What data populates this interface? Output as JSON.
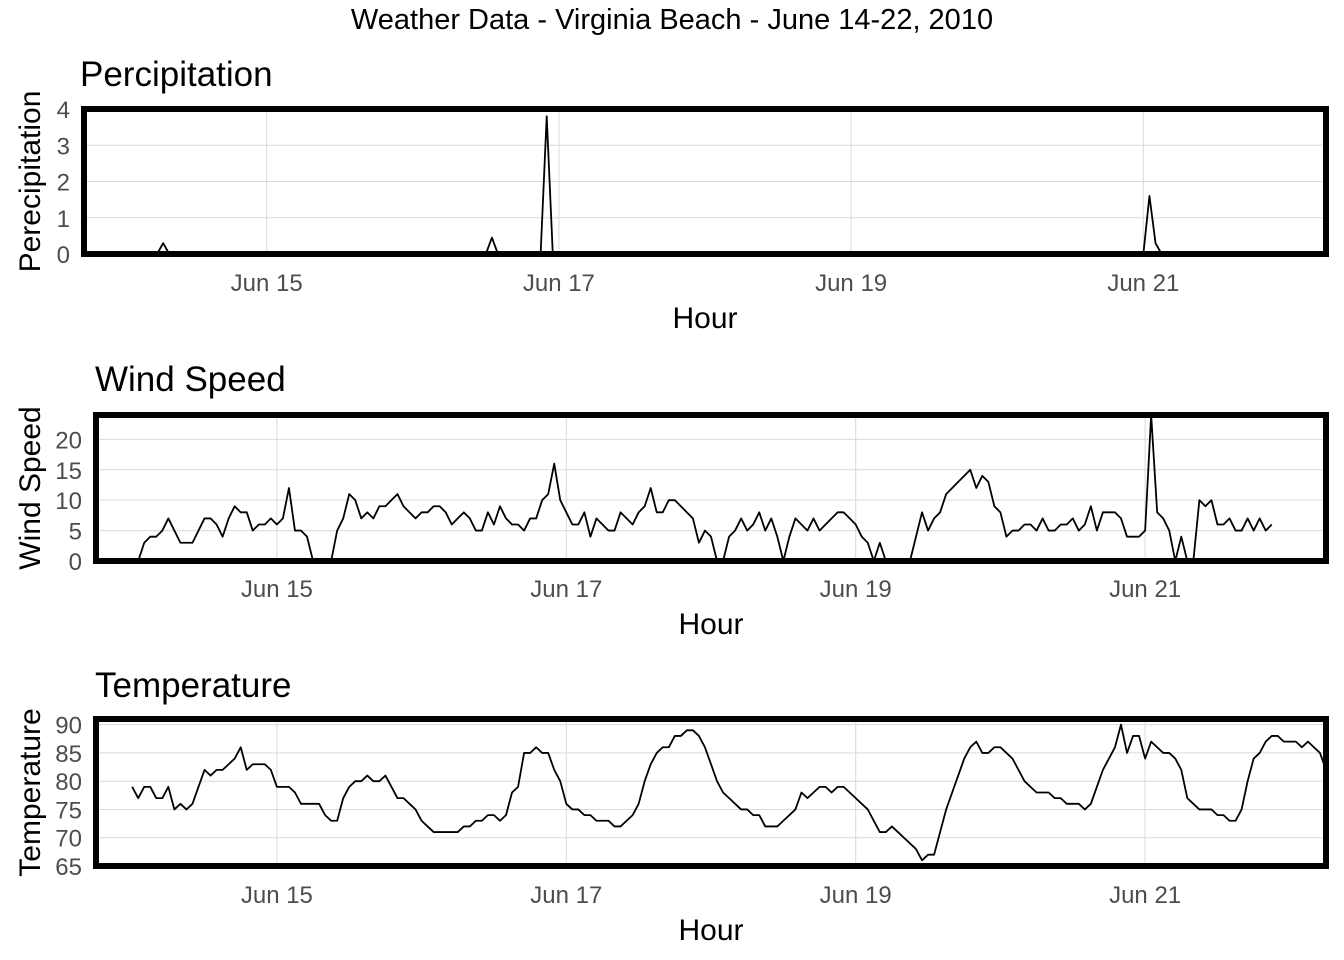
{
  "title": "Weather Data - Virginia Beach - June 14-22, 2010",
  "chart_data": [
    {
      "type": "line",
      "title": "Percipitation",
      "xlabel": "Hour",
      "ylabel": "Perecipitation",
      "x_start": "2010-06-14 00:00",
      "x_end": "2010-06-22 00:00",
      "xlim": [
        "2010-06-13 18:00",
        "2010-06-22 06:00"
      ],
      "ylim": [
        0,
        4
      ],
      "x_ticks": [
        "2010-06-15",
        "2010-06-17",
        "2010-06-19",
        "2010-06-21"
      ],
      "x_tick_labels": [
        "Jun 15",
        "Jun 17",
        "Jun 19",
        "Jun 21"
      ],
      "y_ticks": [
        0,
        1,
        2,
        3,
        4
      ],
      "grid": true,
      "values": [
        0,
        0,
        0,
        0,
        0,
        0,
        0,
        0,
        0,
        0,
        0,
        0,
        0,
        0,
        0,
        0,
        0,
        0,
        0,
        0,
        0,
        0,
        0,
        0,
        0,
        0,
        0,
        0,
        0,
        0,
        0,
        0,
        0,
        0,
        0,
        0,
        0,
        0,
        0,
        0,
        0,
        0,
        0,
        0,
        0,
        0,
        0,
        0,
        0,
        0,
        0,
        0,
        0,
        0,
        0,
        0,
        0,
        0,
        0,
        0,
        0,
        0,
        0,
        0,
        0,
        0,
        0,
        0,
        0,
        0,
        0,
        0,
        0,
        0,
        0,
        0,
        0,
        0,
        0,
        0,
        0,
        0,
        0,
        0,
        0,
        0,
        0,
        0,
        0,
        0,
        0,
        0,
        0,
        0,
        0,
        0,
        0,
        0,
        0,
        0,
        0,
        0,
        0,
        0,
        0,
        0,
        0,
        0,
        0,
        0,
        0,
        0,
        0,
        0,
        0,
        0,
        0,
        0,
        0,
        0,
        0,
        0,
        0,
        0,
        0,
        0,
        0,
        0,
        0,
        0,
        0,
        0,
        0,
        0,
        0,
        0,
        0,
        0,
        0,
        0,
        0,
        0,
        0,
        0,
        0,
        0,
        0,
        0,
        0,
        0,
        0,
        0,
        0,
        0,
        0,
        0,
        0,
        0,
        0,
        0,
        0,
        0,
        0,
        0,
        0,
        0,
        0,
        0,
        0,
        0,
        0,
        0,
        0,
        0,
        0,
        0,
        0,
        0,
        0,
        0,
        0,
        0,
        0,
        0,
        0,
        0,
        0,
        0,
        0,
        0,
        0,
        0,
        0,
        0,
        0
      ],
      "peaks": [
        {
          "hour": 7,
          "value": 0.3
        },
        {
          "hour": 61,
          "value": 0.45
        },
        {
          "hour": 70,
          "value": 3.8
        },
        {
          "hour": 169,
          "value": 1.6
        },
        {
          "hour": 170,
          "value": 0.3
        }
      ]
    },
    {
      "type": "line",
      "title": "Wind Speed",
      "xlabel": "Hour",
      "ylabel": "Wind Speed",
      "x_start": "2010-06-14 00:00",
      "x_end": "2010-06-22 00:00",
      "xlim": [
        "2010-06-13 18:00",
        "2010-06-22 06:00"
      ],
      "ylim": [
        0,
        24
      ],
      "x_ticks": [
        "2010-06-15",
        "2010-06-17",
        "2010-06-19",
        "2010-06-21"
      ],
      "x_tick_labels": [
        "Jun 15",
        "Jun 17",
        "Jun 19",
        "Jun 21"
      ],
      "y_ticks": [
        0,
        5,
        10,
        15,
        20
      ],
      "grid": true,
      "values": [
        0,
        0,
        3,
        4,
        4,
        5,
        7,
        5,
        3,
        3,
        3,
        5,
        7,
        7,
        6,
        4,
        7,
        9,
        8,
        8,
        5,
        6,
        6,
        7,
        6,
        7,
        12,
        5,
        5,
        4,
        0,
        0,
        0,
        0,
        5,
        7,
        11,
        10,
        7,
        8,
        7,
        9,
        9,
        10,
        11,
        9,
        8,
        7,
        8,
        8,
        9,
        9,
        8,
        6,
        7,
        8,
        7,
        5,
        5,
        8,
        6,
        9,
        7,
        6,
        6,
        5,
        7,
        7,
        10,
        11,
        16,
        10,
        8,
        6,
        6,
        8,
        4,
        7,
        6,
        5,
        5,
        8,
        7,
        6,
        8,
        9,
        12,
        8,
        8,
        10,
        10,
        9,
        8,
        7,
        3,
        5,
        4,
        0,
        0,
        4,
        5,
        7,
        5,
        6,
        8,
        5,
        7,
        4,
        0,
        4,
        7,
        6,
        5,
        7,
        5,
        6,
        7,
        8,
        8,
        7,
        6,
        4,
        3,
        0,
        3,
        0,
        0,
        0,
        0,
        0,
        4,
        8,
        5,
        7,
        8,
        11,
        12,
        13,
        14,
        15,
        12,
        14,
        13,
        9,
        8,
        4,
        5,
        5,
        6,
        6,
        5,
        7,
        5,
        5,
        6,
        6,
        7,
        5,
        6,
        9,
        5,
        8,
        8,
        8,
        7,
        4,
        4,
        4,
        5,
        24,
        8,
        7,
        5,
        0,
        4,
        0,
        0,
        10,
        9,
        10,
        6,
        6,
        7,
        5,
        5,
        7,
        5,
        7,
        5,
        6
      ]
    },
    {
      "type": "line",
      "title": "Temperature",
      "xlabel": "Hour",
      "ylabel": "Temperature",
      "x_start": "2010-06-14 00:00",
      "x_end": "2010-06-22 00:00",
      "xlim": [
        "2010-06-13 18:00",
        "2010-06-22 06:00"
      ],
      "ylim": [
        65,
        91
      ],
      "x_ticks": [
        "2010-06-15",
        "2010-06-17",
        "2010-06-19",
        "2010-06-21"
      ],
      "x_tick_labels": [
        "Jun 15",
        "Jun 17",
        "Jun 19",
        "Jun 21"
      ],
      "y_ticks": [
        65,
        70,
        75,
        80,
        85,
        90
      ],
      "grid": true,
      "values": [
        79,
        77,
        79,
        79,
        77,
        77,
        79,
        75,
        76,
        75,
        76,
        79,
        82,
        81,
        82,
        82,
        83,
        84,
        86,
        82,
        83,
        83,
        83,
        82,
        79,
        79,
        79,
        78,
        76,
        76,
        76,
        76,
        74,
        73,
        73,
        77,
        79,
        80,
        80,
        81,
        80,
        80,
        81,
        79,
        77,
        77,
        76,
        75,
        73,
        72,
        71,
        71,
        71,
        71,
        71,
        72,
        72,
        73,
        73,
        74,
        74,
        73,
        74,
        78,
        79,
        85,
        85,
        86,
        85,
        85,
        82,
        80,
        76,
        75,
        75,
        74,
        74,
        73,
        73,
        73,
        72,
        72,
        73,
        74,
        76,
        80,
        83,
        85,
        86,
        86,
        88,
        88,
        89,
        89,
        88,
        86,
        83,
        80,
        78,
        77,
        76,
        75,
        75,
        74,
        74,
        72,
        72,
        72,
        73,
        74,
        75,
        78,
        77,
        78,
        79,
        79,
        78,
        79,
        79,
        78,
        77,
        76,
        75,
        73,
        71,
        71,
        72,
        71,
        70,
        69,
        68,
        66,
        67,
        67,
        71,
        75,
        78,
        81,
        84,
        86,
        87,
        85,
        85,
        86,
        86,
        85,
        84,
        82,
        80,
        79,
        78,
        78,
        78,
        77,
        77,
        76,
        76,
        76,
        75,
        76,
        79,
        82,
        84,
        86,
        90,
        85,
        88,
        88,
        84,
        87,
        86,
        85,
        85,
        84,
        82,
        77,
        76,
        75,
        75,
        75,
        74,
        74,
        73,
        73,
        75,
        80,
        84,
        85,
        87,
        88,
        88,
        87,
        87,
        87,
        86,
        87,
        86,
        85,
        82
      ]
    }
  ]
}
